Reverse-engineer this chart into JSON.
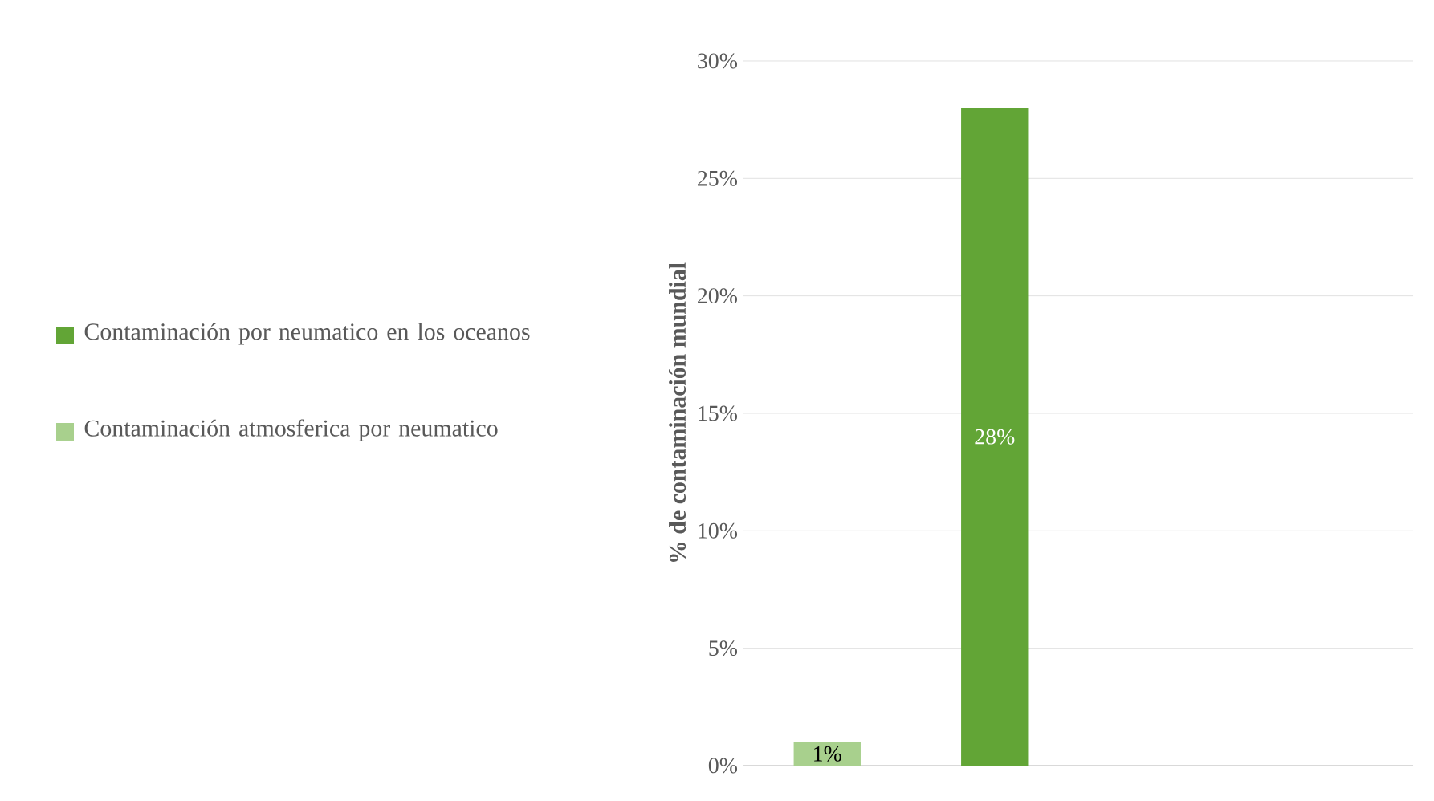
{
  "chart_data": {
    "type": "bar",
    "ylabel": "% de contaminación mundial",
    "categories": [
      null,
      null,
      null,
      null
    ],
    "series": [
      {
        "name": "Contaminación por neumatico en los oceanos",
        "color": "#62a536",
        "values": [
          null,
          28,
          null,
          null
        ],
        "value_labels": [
          null,
          "28%",
          null,
          null
        ]
      },
      {
        "name": "Contaminación atmosferica por neumatico",
        "color": "#a8d08d",
        "values": [
          1,
          null,
          null,
          null
        ],
        "value_labels": [
          "1%",
          null,
          null,
          null
        ]
      }
    ],
    "ylim": [
      0,
      30
    ],
    "yticks": [
      {
        "value": 0,
        "label": "0%"
      },
      {
        "value": 5,
        "label": "5%"
      },
      {
        "value": 10,
        "label": "10%"
      },
      {
        "value": 15,
        "label": "15%"
      },
      {
        "value": 20,
        "label": "20%"
      },
      {
        "value": 25,
        "label": "25%"
      },
      {
        "value": 30,
        "label": "30%"
      }
    ],
    "grid": "y",
    "legend": "left"
  }
}
